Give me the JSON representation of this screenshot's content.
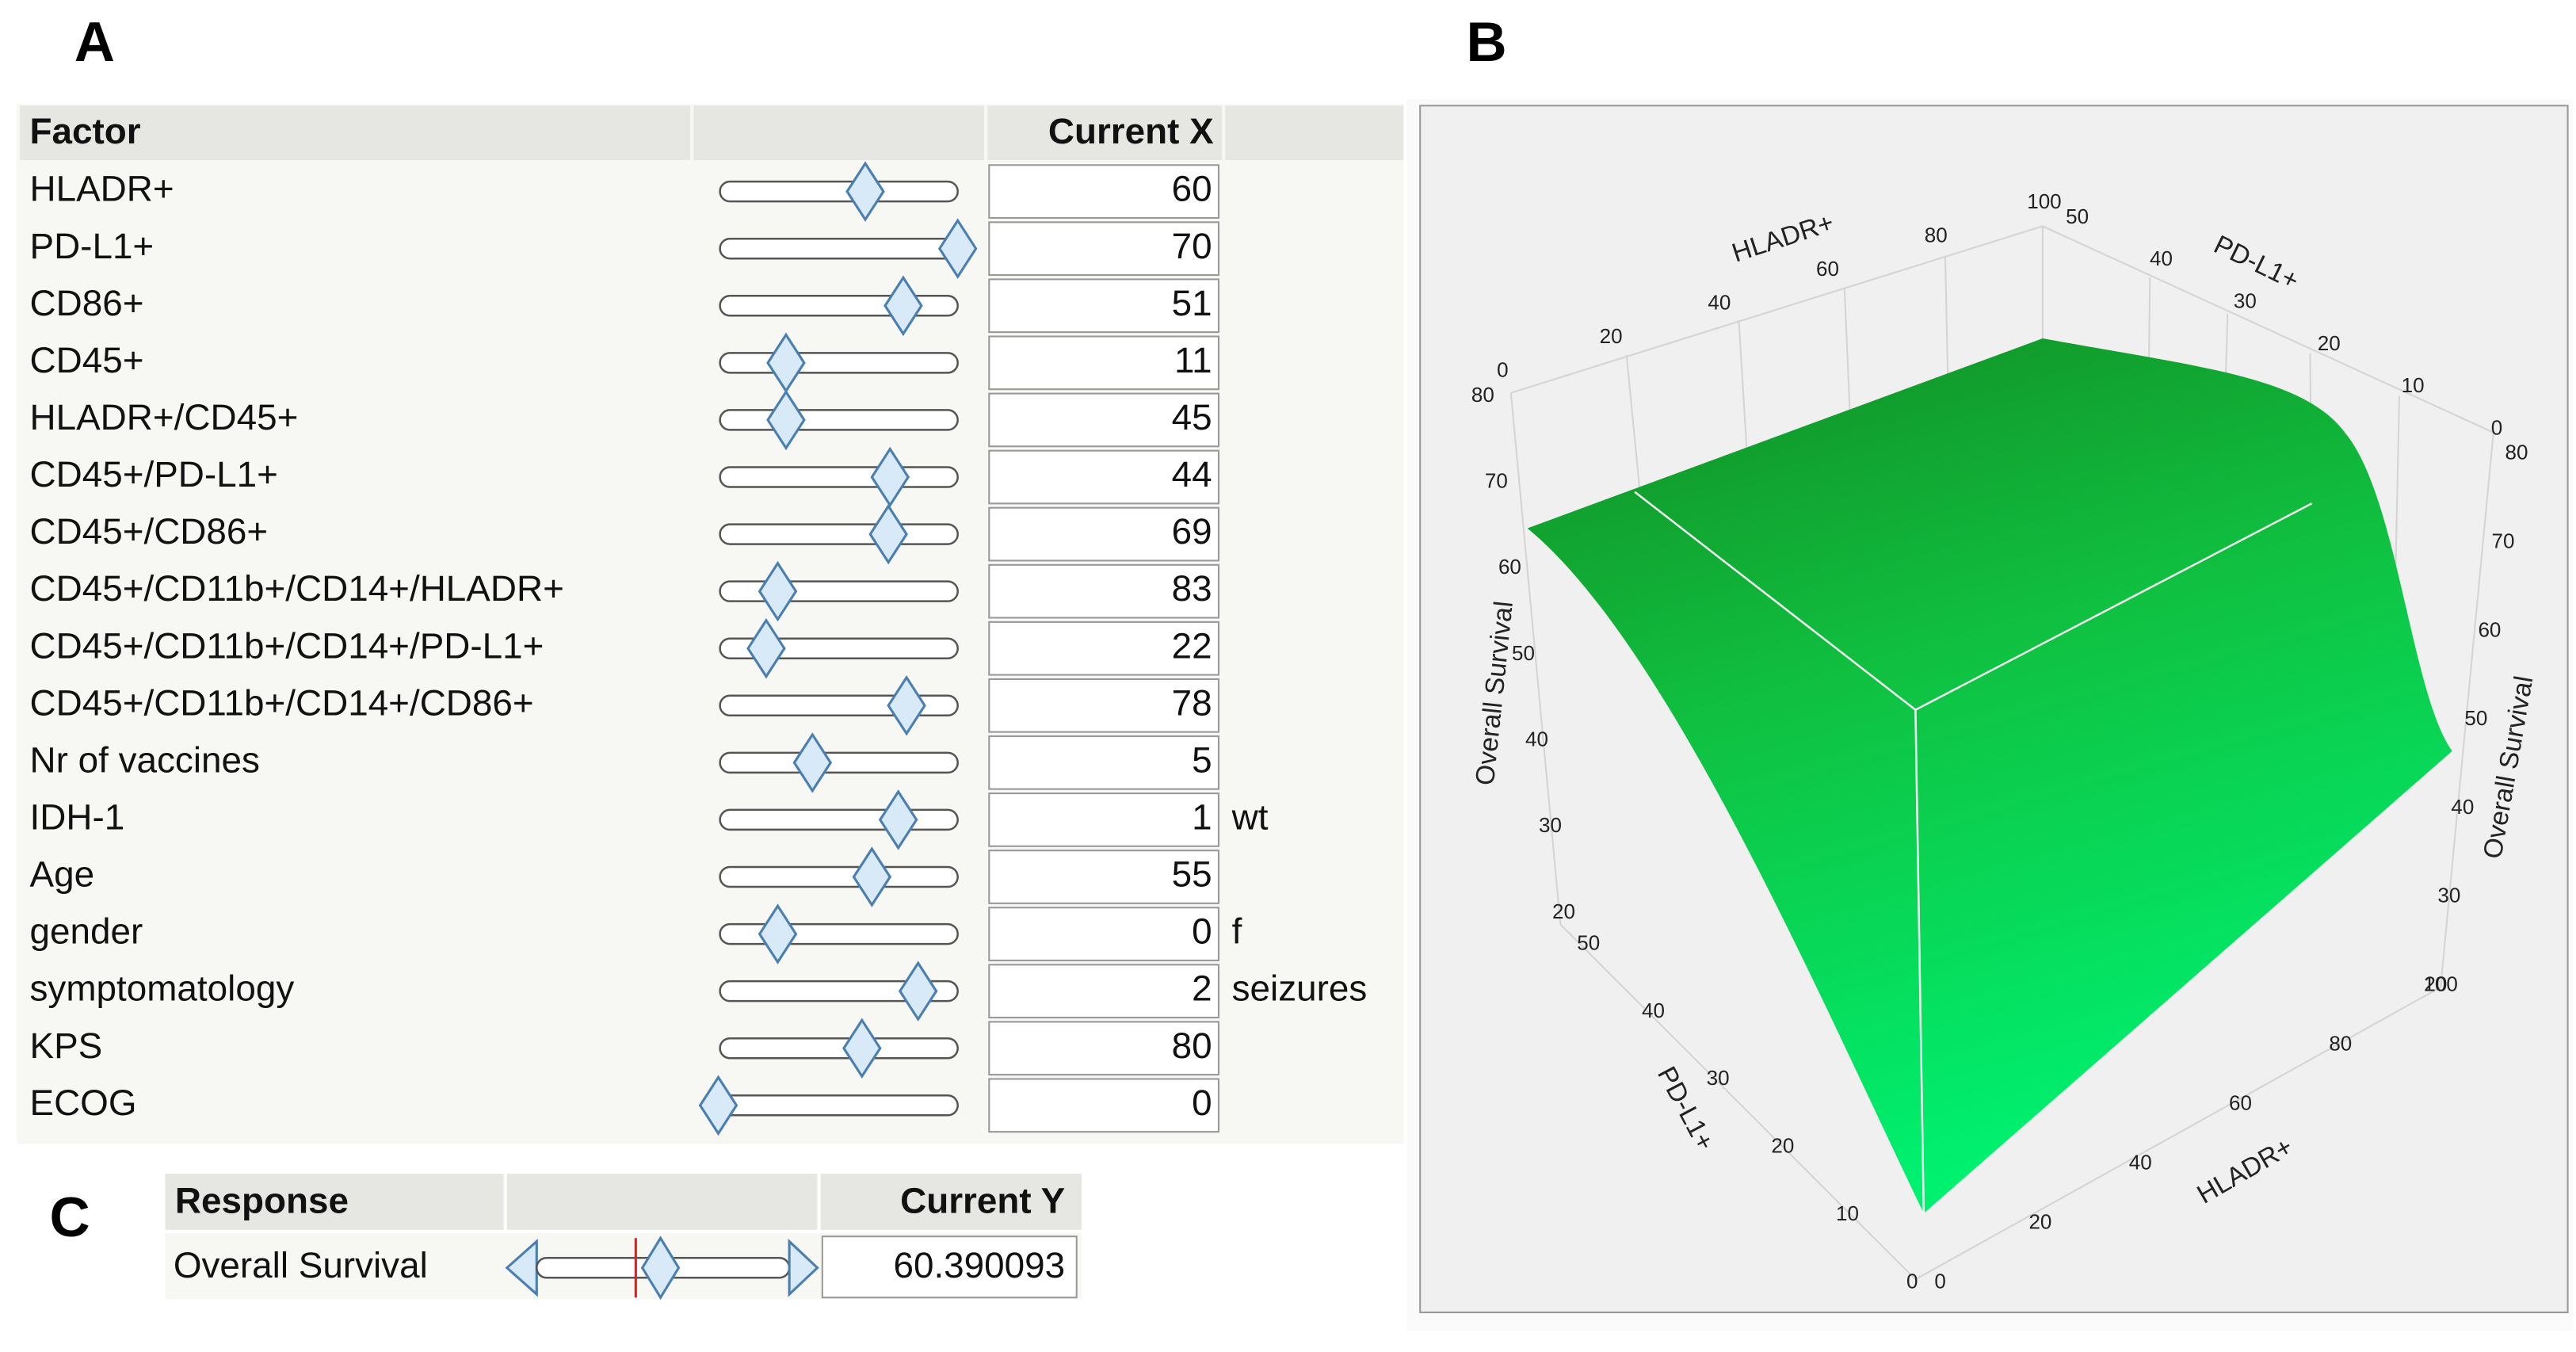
{
  "panel_labels": [
    "A",
    "B",
    "C"
  ],
  "factor_table": {
    "header": [
      "Factor",
      "Current X"
    ],
    "rows": [
      {
        "factor": "HLADR+",
        "value": 60
      },
      {
        "factor": "PD-L1+",
        "value": 70
      },
      {
        "factor": "CD86+",
        "value": 51
      },
      {
        "factor": "CD45+",
        "value": 11
      },
      {
        "factor": "HLADR+/CD45+",
        "value": 45
      },
      {
        "factor": "CD45+/PD-L1+",
        "value": 44
      },
      {
        "factor": "CD45+/CD86+",
        "value": 69
      },
      {
        "factor": "CD45+/CD11b+/CD14+/HLADR+",
        "value": 83
      },
      {
        "factor": "CD45+/CD11b+/CD14+/PD-L1+",
        "value": 22
      },
      {
        "factor": "CD45+/CD11b+/CD14+/CD86+",
        "value": 78
      },
      {
        "factor": "Nr of vaccines",
        "value": 5
      },
      {
        "factor": "IDH-1",
        "value": 1,
        "unit": "wt"
      },
      {
        "factor": "Age",
        "value": 55
      },
      {
        "factor": "gender",
        "value": 0,
        "unit": "f"
      },
      {
        "factor": "symptomatology",
        "value": 2,
        "unit": "seizures"
      },
      {
        "factor": "KPS",
        "value": 80
      },
      {
        "factor": "ECOG",
        "value": 0
      }
    ]
  },
  "response_table": {
    "header": [
      "Response",
      "Current Y"
    ],
    "rows": [
      {
        "response": "Overall Survival",
        "value": 60.390093
      }
    ]
  },
  "surface_plot": {
    "axes": [
      {
        "label": "HLADR+",
        "ticks": [
          0,
          20,
          40,
          60,
          80,
          100
        ]
      },
      {
        "label": "PD-L1+",
        "ticks": [
          50,
          40,
          30,
          20,
          10,
          0
        ]
      },
      {
        "label": "Overall Survival",
        "ticks": [
          80,
          70,
          60,
          50,
          40,
          30,
          20
        ]
      },
      {
        "label": "Overall Survival",
        "ticks": [
          80,
          70,
          60,
          50,
          40,
          30,
          20
        ]
      },
      {
        "label": "PD-L1+",
        "ticks": [
          50,
          40,
          30,
          20,
          10,
          0
        ]
      },
      {
        "label": "HLADR+",
        "ticks": [
          0,
          20,
          40,
          60,
          80,
          100
        ]
      }
    ]
  }
}
